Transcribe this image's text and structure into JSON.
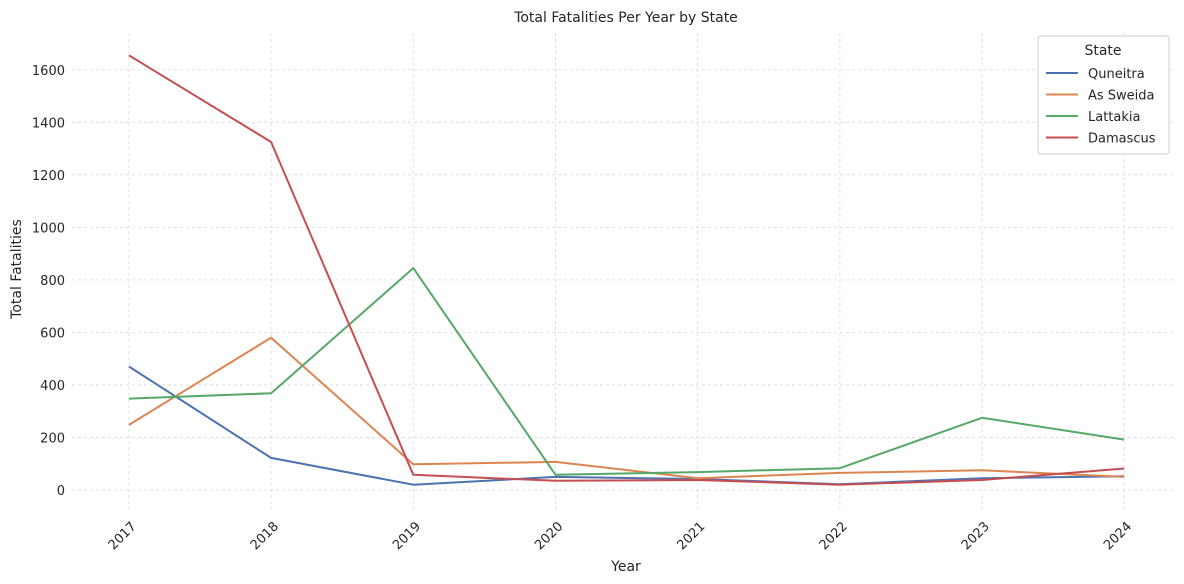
{
  "chart_data": {
    "type": "line",
    "title": "Total Fatalities Per Year by State",
    "xlabel": "Year",
    "ylabel": "Total Fatalities",
    "x": [
      2017,
      2018,
      2019,
      2020,
      2021,
      2022,
      2023,
      2024
    ],
    "xtick_labels": [
      "2017",
      "2018",
      "2019",
      "2020",
      "2021",
      "2022",
      "2023",
      "2024"
    ],
    "yticks": [
      0,
      200,
      400,
      600,
      800,
      1000,
      1200,
      1400,
      1600
    ],
    "ytick_labels": [
      "0",
      "200",
      "400",
      "600",
      "800",
      "1000",
      "1200",
      "1400",
      "1600"
    ],
    "xlim": [
      2016.6,
      2024.35
    ],
    "ylim": [
      -80,
      1740
    ],
    "grid": true,
    "legend": {
      "title": "State",
      "placement": "top-right"
    },
    "series": [
      {
        "name": "Quneitra",
        "color": "#4c72b0",
        "values": [
          470,
          122,
          20,
          50,
          42,
          22,
          45,
          52
        ]
      },
      {
        "name": "As Sweida",
        "color": "#dd8452",
        "values": [
          248,
          580,
          98,
          107,
          45,
          65,
          75,
          50
        ]
      },
      {
        "name": "Lattakia",
        "color": "#55a868",
        "values": [
          348,
          368,
          845,
          58,
          68,
          83,
          275,
          192
        ]
      },
      {
        "name": "Damascus",
        "color": "#c44e52",
        "values": [
          1655,
          1325,
          58,
          35,
          38,
          20,
          38,
          82
        ]
      }
    ]
  }
}
